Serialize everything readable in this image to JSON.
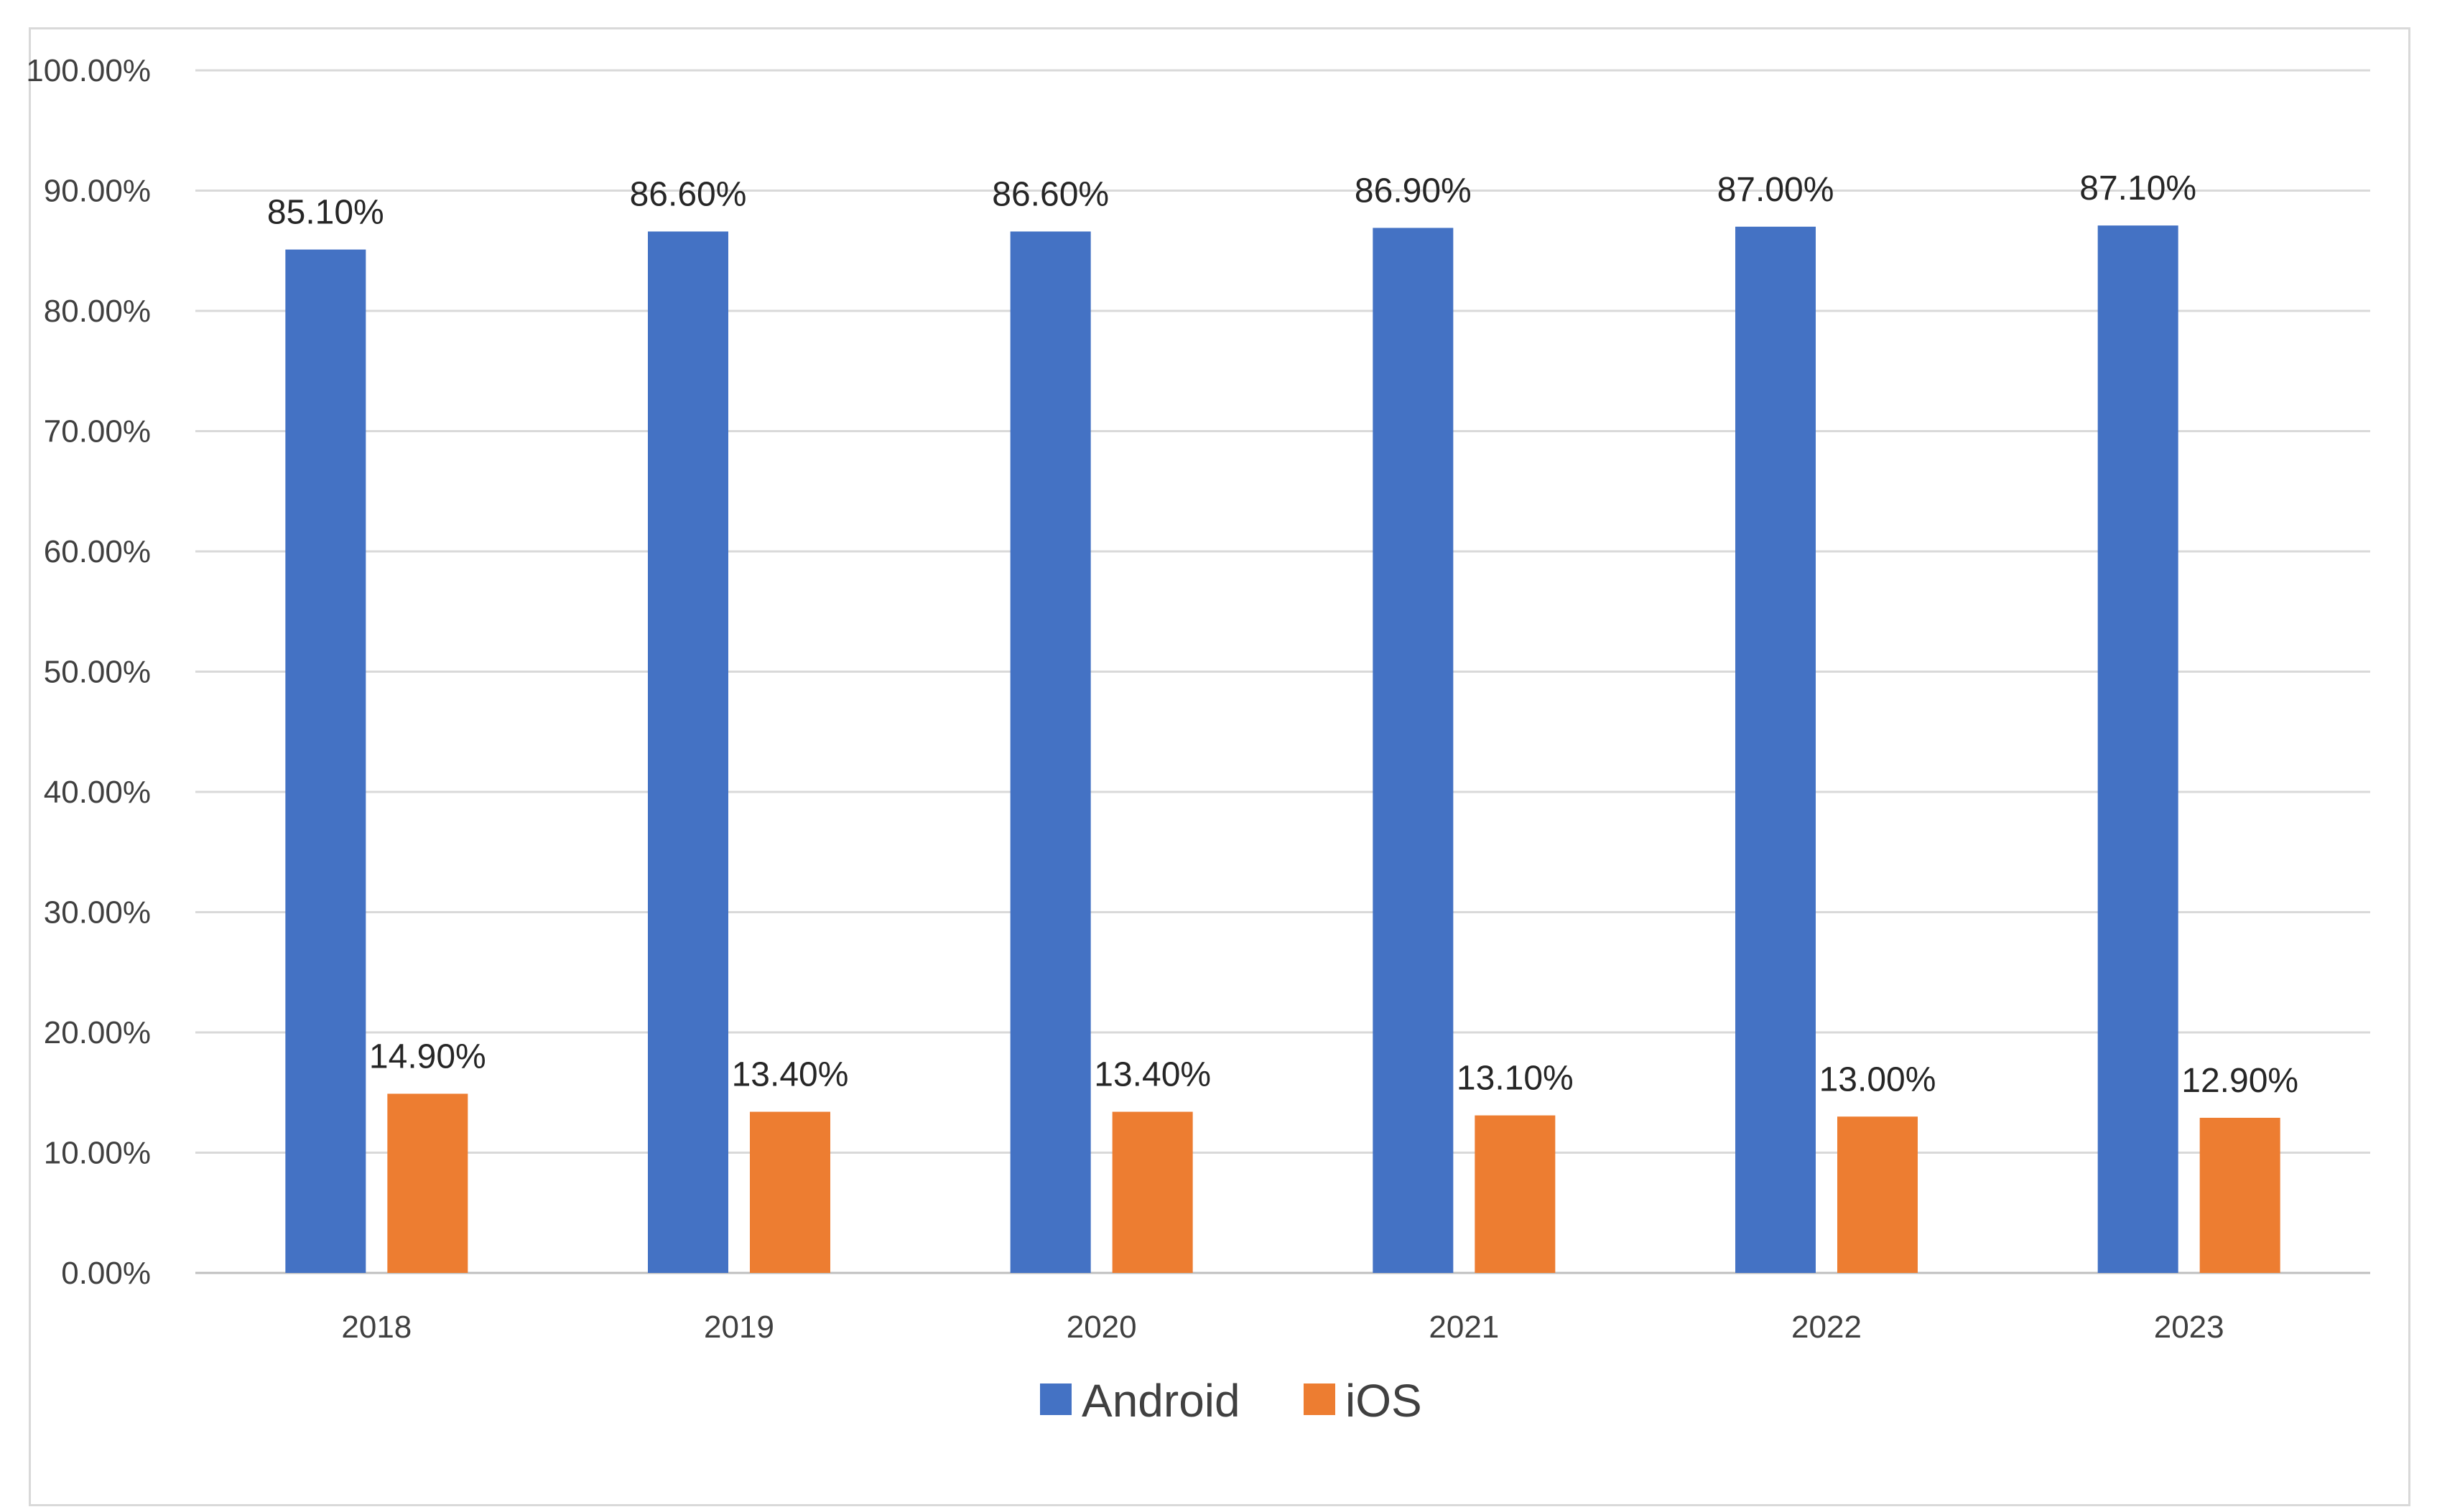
{
  "chart_data": {
    "type": "bar",
    "categories": [
      "2018",
      "2019",
      "2020",
      "2021",
      "2022",
      "2023"
    ],
    "series": [
      {
        "name": "Android",
        "color": "#4472c4",
        "values": [
          85.1,
          86.6,
          86.6,
          86.9,
          87.0,
          87.1
        ],
        "labels": [
          "85.10%",
          "86.60%",
          "86.60%",
          "86.90%",
          "87.00%",
          "87.10%"
        ]
      },
      {
        "name": "iOS",
        "color": "#ed7d31",
        "values": [
          14.9,
          13.4,
          13.4,
          13.1,
          13.0,
          12.9
        ],
        "labels": [
          "14.90%",
          "13.40%",
          "13.40%",
          "13.10%",
          "13.00%",
          "12.90%"
        ]
      }
    ],
    "y_ticks": [
      "0.00%",
      "10.00%",
      "20.00%",
      "30.00%",
      "40.00%",
      "50.00%",
      "60.00%",
      "70.00%",
      "80.00%",
      "90.00%",
      "100.00%"
    ],
    "ylim": [
      0,
      100
    ],
    "grid": true,
    "legend_position": "bottom"
  }
}
